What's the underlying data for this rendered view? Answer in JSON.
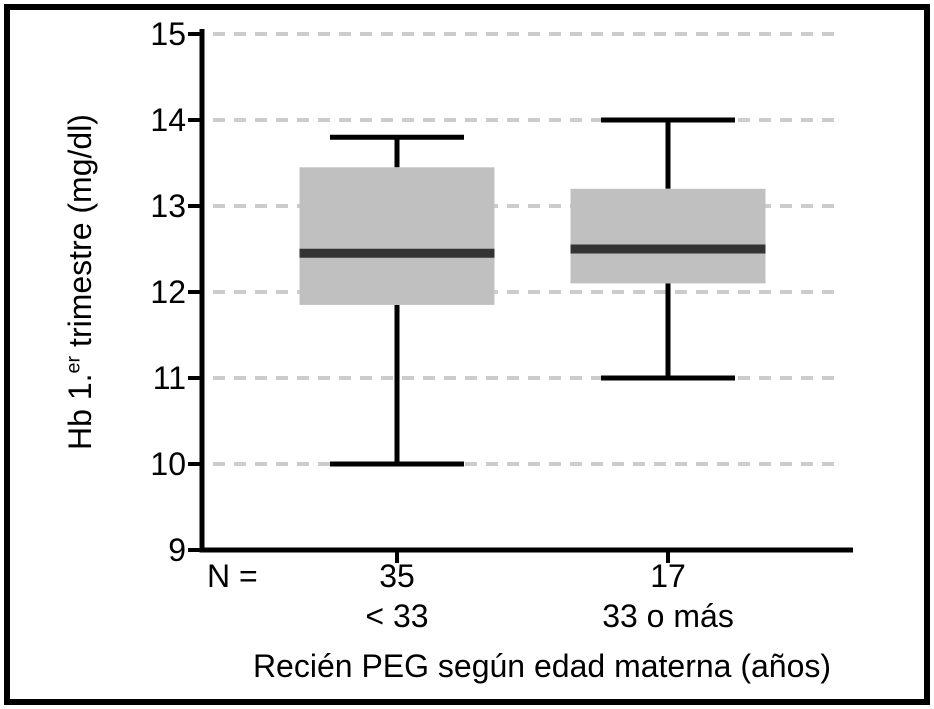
{
  "chart_data": {
    "type": "boxplot",
    "title": "",
    "xlabel": "Recién PEG según edad materna (años)",
    "ylabel": "Hb 1.er trimestre (mg/dl)",
    "ylabel_parts": {
      "prefix": "Hb 1.",
      "sup": "er",
      "suffix": " trimestre (mg/dl)"
    },
    "n_prefix": "N =",
    "ylim": [
      9,
      15
    ],
    "yticks": [
      15,
      14,
      13,
      12,
      11,
      10,
      9
    ],
    "grid": "horizontal dashed gridlines at each y tick except axis minimum",
    "legend": "none",
    "groups": [
      {
        "category": "< 33",
        "n": "35",
        "whisker_low": 10.0,
        "q1": 11.85,
        "median": 12.45,
        "q3": 13.45,
        "whisker_high": 13.8
      },
      {
        "category": "33 o más",
        "n": "17",
        "whisker_low": 11.0,
        "q1": 12.1,
        "median": 12.5,
        "q3": 13.2,
        "whisker_high": 14.0
      }
    ],
    "colors": {
      "box_fill": "#c0c0c0",
      "median": "#333333",
      "line": "#000000",
      "grid": "#cccccc",
      "text": "#000000"
    }
  }
}
